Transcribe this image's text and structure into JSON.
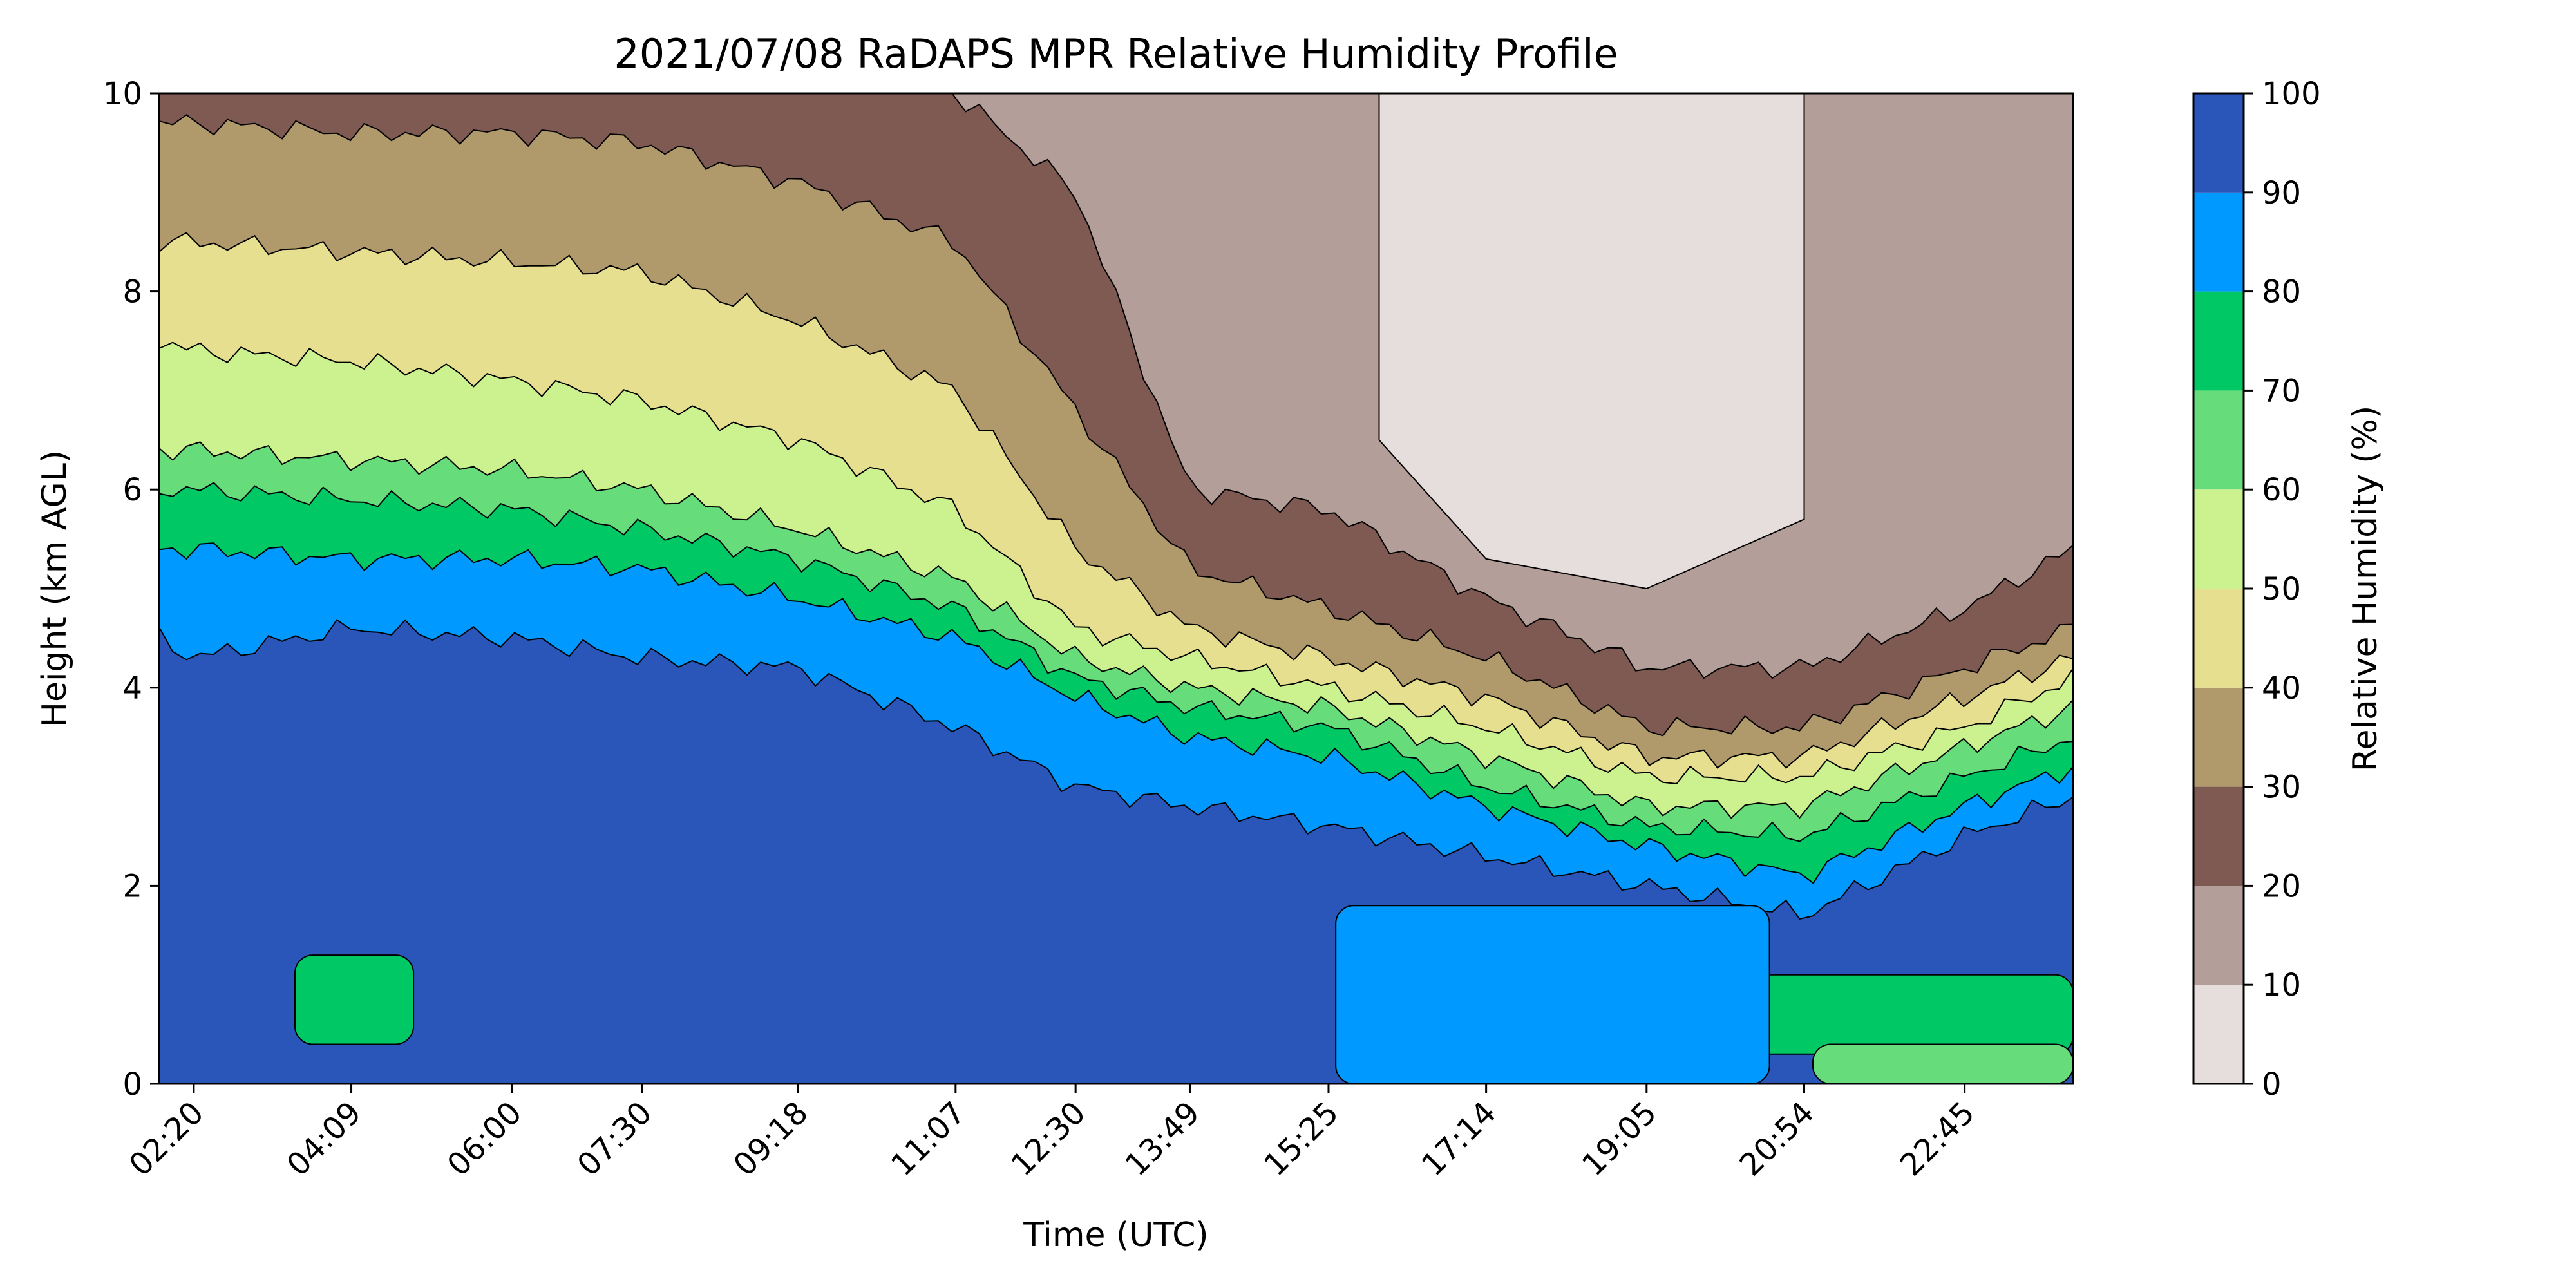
{
  "chart_data": {
    "type": "heatmap",
    "subtype": "filled-contour",
    "title": "2021/07/08 RaDAPS MPR Relative Humidity Profile",
    "xlabel": "Time (UTC)",
    "ylabel": "Height (km AGL)",
    "x_tick_labels": [
      "02:20",
      "04:09",
      "06:00",
      "07:30",
      "09:18",
      "11:07",
      "12:30",
      "13:49",
      "15:25",
      "17:14",
      "19:05",
      "20:54",
      "22:45"
    ],
    "y_ticks": [
      0,
      2,
      4,
      6,
      8,
      10
    ],
    "ylim": [
      0,
      10
    ],
    "x_range_approx": [
      "01:56",
      "24:00"
    ],
    "grid": false,
    "colorbar": {
      "label": "Relative Humidity (%)",
      "levels": [
        0,
        10,
        20,
        30,
        40,
        50,
        60,
        70,
        80,
        90,
        100
      ],
      "colors": [
        "#e6dedc",
        "#b39e99",
        "#7f5a52",
        "#b0996b",
        "#e6df8f",
        "#ccf28f",
        "#66dd7a",
        "#00c864",
        "#0099ff",
        "#2a55b9"
      ],
      "placement": "right"
    },
    "contour_band_tops_km": {
      "times": [
        "01:56",
        "02:20",
        "04:09",
        "06:00",
        "07:30",
        "09:18",
        "11:07",
        "12:30",
        "13:49",
        "15:25",
        "17:14",
        "19:05",
        "20:54",
        "22:45",
        "24:00"
      ],
      "rh_above_90_top": [
        4.5,
        4.3,
        4.6,
        4.5,
        4.3,
        4.2,
        3.6,
        3.0,
        2.8,
        2.6,
        2.3,
        2.0,
        1.7,
        2.5,
        2.9
      ],
      "rh_80_top": [
        5.4,
        5.4,
        5.3,
        5.3,
        5.2,
        4.9,
        4.5,
        3.9,
        3.5,
        3.3,
        2.8,
        2.4,
        2.1,
        2.8,
        3.2
      ],
      "rh_70_top": [
        6.0,
        6.0,
        5.9,
        5.8,
        5.6,
        5.3,
        4.8,
        4.1,
        3.8,
        3.6,
        3.0,
        2.6,
        2.5,
        3.1,
        3.5
      ],
      "rh_60_top": [
        6.4,
        6.4,
        6.3,
        6.2,
        6.0,
        5.6,
        5.1,
        4.3,
        4.0,
        3.8,
        3.3,
        2.8,
        2.8,
        3.4,
        3.8
      ],
      "rh_50_top": [
        7.5,
        7.4,
        7.3,
        7.1,
        6.9,
        6.5,
        5.8,
        4.6,
        4.3,
        4.0,
        3.6,
        3.1,
        3.1,
        3.6,
        4.1
      ],
      "rh_40_top": [
        8.5,
        8.5,
        8.4,
        8.3,
        8.2,
        7.7,
        7.0,
        5.4,
        4.6,
        4.3,
        3.9,
        3.3,
        3.3,
        3.9,
        4.3
      ],
      "rh_30_top": [
        9.7,
        9.7,
        9.6,
        9.6,
        9.5,
        9.1,
        8.5,
        6.8,
        5.2,
        4.8,
        4.3,
        3.6,
        3.6,
        4.2,
        4.6
      ],
      "rh_20_top": [
        10.0,
        10.0,
        10.0,
        10.0,
        10.0,
        10.0,
        10.0,
        9.0,
        6.0,
        5.8,
        4.9,
        4.2,
        4.2,
        4.8,
        5.4
      ]
    },
    "dry_core_below_10": {
      "times": [
        "16:00",
        "17:14",
        "19:05",
        "20:54"
      ],
      "bottom_km": [
        6.5,
        5.3,
        5.0,
        5.7
      ],
      "top_km": [
        10.0,
        10.0,
        10.0,
        10.0
      ]
    },
    "low_level_features": [
      {
        "rh_range": "70-80",
        "time_range": [
          "03:30",
          "04:52"
        ],
        "height_km": [
          0.4,
          1.3
        ]
      },
      {
        "rh_range": "70-80",
        "time_range": [
          "20:00",
          "24:00"
        ],
        "height_km": [
          0.3,
          1.1
        ]
      },
      {
        "rh_range": "60-70",
        "time_range": [
          "21:00",
          "24:00"
        ],
        "height_km": [
          0.0,
          0.4
        ]
      },
      {
        "rh_range": "80-90",
        "time_range": [
          "15:30",
          "20:30"
        ],
        "height_km": [
          0.0,
          1.8
        ]
      }
    ]
  }
}
